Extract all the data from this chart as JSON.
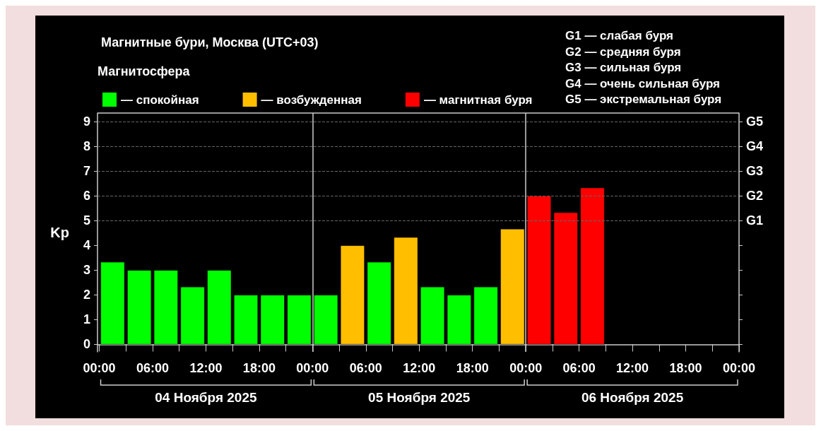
{
  "chart_data": {
    "type": "bar",
    "title": "Магнитные бури, Москва (UTC+03)",
    "legend_title": "Магнитосфера",
    "ylabel": "Kp",
    "legend": "top left",
    "series": [
      {
        "name": "— спокойная",
        "color": "#00ff00",
        "x": [
          "2025-11-04T01:30",
          "2025-11-04T04:30",
          "2025-11-04T07:30",
          "2025-11-04T10:30",
          "2025-11-04T13:30",
          "2025-11-04T16:30",
          "2025-11-04T19:30",
          "2025-11-04T22:30",
          "2025-11-05T01:30",
          "2025-11-05T07:30",
          "2025-11-05T13:30",
          "2025-11-05T16:30",
          "2025-11-05T19:30"
        ],
        "values": [
          3.33,
          3,
          3,
          2.33,
          3,
          2,
          2,
          2,
          2,
          3.33,
          2.33,
          2,
          2.33
        ]
      },
      {
        "name": "— возбужденная",
        "color": "#ffbf00",
        "x": [
          "2025-11-05T04:30",
          "2025-11-05T10:30",
          "2025-11-05T22:30"
        ],
        "values": [
          4,
          4.33,
          4.67
        ]
      },
      {
        "name": "— магнитная буря",
        "color": "#ff0000",
        "x": [
          "2025-11-06T01:30",
          "2025-11-06T04:30",
          "2025-11-06T07:30"
        ],
        "values": [
          6,
          5.33,
          6.33
        ]
      }
    ],
    "xlim": [
      "2025-11-03T23:48",
      "2025-11-07T00:00"
    ],
    "xticks": [
      {
        "value": "2025-11-04T00:00",
        "label": "00:00"
      },
      {
        "value": "2025-11-04T03:00",
        "label": null
      },
      {
        "value": "2025-11-04T06:00",
        "label": "06:00"
      },
      {
        "value": "2025-11-04T09:00",
        "label": null
      },
      {
        "value": "2025-11-04T12:00",
        "label": "12:00"
      },
      {
        "value": "2025-11-04T15:00",
        "label": null
      },
      {
        "value": "2025-11-04T18:00",
        "label": "18:00"
      },
      {
        "value": "2025-11-04T21:00",
        "label": null
      },
      {
        "value": "2025-11-05T00:00",
        "label": "00:00"
      },
      {
        "value": "2025-11-05T03:00",
        "label": null
      },
      {
        "value": "2025-11-05T06:00",
        "label": "06:00"
      },
      {
        "value": "2025-11-05T09:00",
        "label": null
      },
      {
        "value": "2025-11-05T12:00",
        "label": "12:00"
      },
      {
        "value": "2025-11-05T15:00",
        "label": null
      },
      {
        "value": "2025-11-05T18:00",
        "label": "18:00"
      },
      {
        "value": "2025-11-05T21:00",
        "label": null
      },
      {
        "value": "2025-11-06T00:00",
        "label": "00:00"
      },
      {
        "value": "2025-11-06T03:00",
        "label": null
      },
      {
        "value": "2025-11-06T06:00",
        "label": "06:00"
      },
      {
        "value": "2025-11-06T09:00",
        "label": null
      },
      {
        "value": "2025-11-06T12:00",
        "label": "12:00"
      },
      {
        "value": "2025-11-06T15:00",
        "label": null
      },
      {
        "value": "2025-11-06T18:00",
        "label": "18:00"
      },
      {
        "value": "2025-11-06T21:00",
        "label": null
      },
      {
        "value": "2025-11-07T00:00",
        "label": "00:00"
      }
    ],
    "ylim": [
      -0.3,
      9.35
    ],
    "yticks": [
      0,
      1,
      2,
      3,
      4,
      5,
      6,
      7,
      8,
      9
    ],
    "ref_lines": [
      {
        "axis": "y",
        "value": 5,
        "label": "G1",
        "color": "#666666",
        "line_style": "dashed"
      },
      {
        "axis": "y",
        "value": 6,
        "label": "G2",
        "color": "#666666",
        "line_style": "dashed"
      },
      {
        "axis": "y",
        "value": 7,
        "label": "G3",
        "color": "#666666",
        "line_style": "dashed"
      },
      {
        "axis": "y",
        "value": 8,
        "label": "G4",
        "color": "#666666",
        "line_style": "dashed"
      },
      {
        "axis": "y",
        "value": 9,
        "label": "G5",
        "color": "#666666",
        "line_style": "dashed"
      },
      {
        "axis": "x",
        "value": "2025-11-05T00:00",
        "color": "#cccccc",
        "line_style": "solid"
      },
      {
        "axis": "x",
        "value": "2025-11-06T00:00",
        "color": "#cccccc",
        "line_style": "solid"
      }
    ],
    "annotations": [
      "G1 — слабая буря",
      "G2 — средняя буря",
      "G3 — сильная буря",
      "G4 — очень сильная буря",
      "G5 — экстремальная буря",
      "04 Ноября 2025",
      "05 Ноября 2025",
      "06 Ноября 2025"
    ]
  }
}
